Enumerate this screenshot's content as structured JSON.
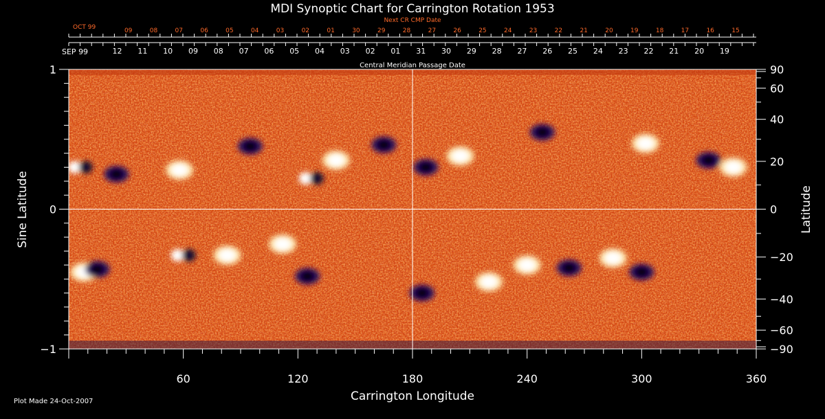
{
  "chart_data": {
    "type": "heatmap",
    "title": "MDI Synoptic Chart for Carrington Rotation 1953",
    "xlabel": "Carrington Longitude",
    "ylabel_left": "Sine Latitude",
    "ylabel_right": "Latitude",
    "xlim": [
      0,
      360
    ],
    "ylim": [
      -1,
      1
    ],
    "x_ticks": [
      60,
      120,
      180,
      240,
      300,
      360
    ],
    "y_ticks_left": [
      1,
      0,
      -1
    ],
    "y_ticks_right": [
      90,
      60,
      40,
      20,
      0,
      -20,
      -40,
      -60,
      -90
    ],
    "crosshair": {
      "longitude": 180,
      "sine_latitude": 0
    },
    "top_axis_upper": {
      "label": "Next CR CMP Date",
      "month_label": "OCT 99",
      "dates": [
        "09",
        "08",
        "07",
        "06",
        "05",
        "04",
        "03",
        "02",
        "01",
        "30",
        "29",
        "28",
        "27",
        "26",
        "25",
        "24",
        "23",
        "22",
        "21",
        "20",
        "19",
        "18",
        "17",
        "16",
        "15"
      ],
      "first_longitude": 31.2,
      "step_longitude": 13.25
    },
    "top_axis_lower": {
      "label": "Central Meridian Passage Date",
      "month_label": "SEP 99",
      "dates": [
        "12",
        "11",
        "10",
        "09",
        "08",
        "07",
        "06",
        "05",
        "04",
        "03",
        "02",
        "01",
        "31",
        "30",
        "29",
        "28",
        "27",
        "26",
        "25",
        "24",
        "23",
        "22",
        "21",
        "20",
        "19"
      ],
      "first_longitude": 25.4,
      "step_longitude": 13.25
    },
    "colorscale": [
      "#000000",
      "#1c0f5e",
      "#6a1040",
      "#b8280c",
      "#e2480a",
      "#ff6a1a",
      "#ff8f3a",
      "#ffd27a",
      "#ffffff"
    ],
    "active_regions": [
      {
        "lon": 6,
        "lat": 0.3,
        "polarity": "mixed"
      },
      {
        "lon": 25,
        "lat": 0.25,
        "polarity": "negative"
      },
      {
        "lon": 58,
        "lat": 0.28,
        "polarity": "positive"
      },
      {
        "lon": 95,
        "lat": 0.45,
        "polarity": "negative"
      },
      {
        "lon": 127,
        "lat": 0.22,
        "polarity": "mixed"
      },
      {
        "lon": 140,
        "lat": 0.35,
        "polarity": "positive"
      },
      {
        "lon": 165,
        "lat": 0.46,
        "polarity": "negative"
      },
      {
        "lon": 187,
        "lat": 0.3,
        "polarity": "negative"
      },
      {
        "lon": 205,
        "lat": 0.38,
        "polarity": "positive"
      },
      {
        "lon": 248,
        "lat": 0.55,
        "polarity": "negative"
      },
      {
        "lon": 302,
        "lat": 0.47,
        "polarity": "positive"
      },
      {
        "lon": 335,
        "lat": 0.35,
        "polarity": "negative"
      },
      {
        "lon": 348,
        "lat": 0.3,
        "polarity": "positive"
      },
      {
        "lon": 8,
        "lat": -0.45,
        "polarity": "positive"
      },
      {
        "lon": 15,
        "lat": -0.43,
        "polarity": "negative"
      },
      {
        "lon": 60,
        "lat": -0.33,
        "polarity": "mixed"
      },
      {
        "lon": 83,
        "lat": -0.33,
        "polarity": "positive"
      },
      {
        "lon": 112,
        "lat": -0.25,
        "polarity": "positive"
      },
      {
        "lon": 125,
        "lat": -0.48,
        "polarity": "negative"
      },
      {
        "lon": 185,
        "lat": -0.6,
        "polarity": "negative"
      },
      {
        "lon": 220,
        "lat": -0.52,
        "polarity": "positive"
      },
      {
        "lon": 240,
        "lat": -0.4,
        "polarity": "positive"
      },
      {
        "lon": 262,
        "lat": -0.42,
        "polarity": "negative"
      },
      {
        "lon": 285,
        "lat": -0.35,
        "polarity": "positive"
      },
      {
        "lon": 300,
        "lat": -0.45,
        "polarity": "negative"
      }
    ]
  },
  "footer": {
    "plot_made": "Plot Made 24-Oct-2007"
  }
}
